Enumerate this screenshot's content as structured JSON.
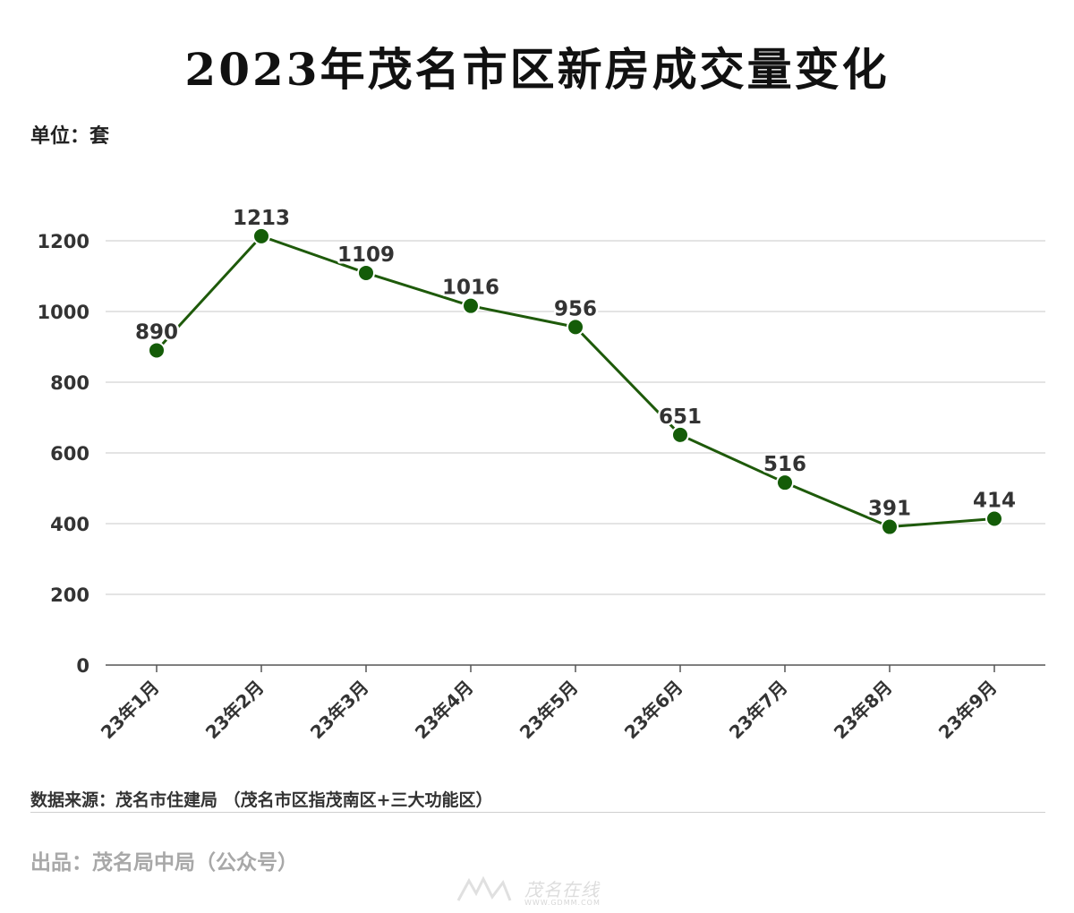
{
  "title": "2023年茂名市区新房成交量变化",
  "unit_label": "单位：套",
  "source": "数据来源：茂名市住建局 （茂名市区指茂南区+三大功能区）",
  "producer": "出品：茂名局中局（公众号）",
  "watermark": {
    "name": "茂名在线",
    "url": "WWW.GDMM.COM"
  },
  "colors": {
    "line": "#1e5a0a",
    "marker": "#145c08",
    "grid": "#dcdcdc",
    "axis": "#555555"
  },
  "chart_data": {
    "type": "line",
    "categories": [
      "23年1月",
      "23年2月",
      "23年3月",
      "23年4月",
      "23年5月",
      "23年6月",
      "23年7月",
      "23年8月",
      "23年9月"
    ],
    "values": [
      890,
      1213,
      1109,
      1016,
      956,
      651,
      516,
      391,
      414
    ],
    "data_labels": [
      "890",
      "1213",
      "1109",
      "1016",
      "956",
      "651",
      "516",
      "391",
      "414"
    ],
    "yticks": [
      0,
      200,
      400,
      600,
      800,
      1000,
      1200
    ],
    "ylim": [
      0,
      1200
    ],
    "grid": "horizontal",
    "legend": "none"
  }
}
